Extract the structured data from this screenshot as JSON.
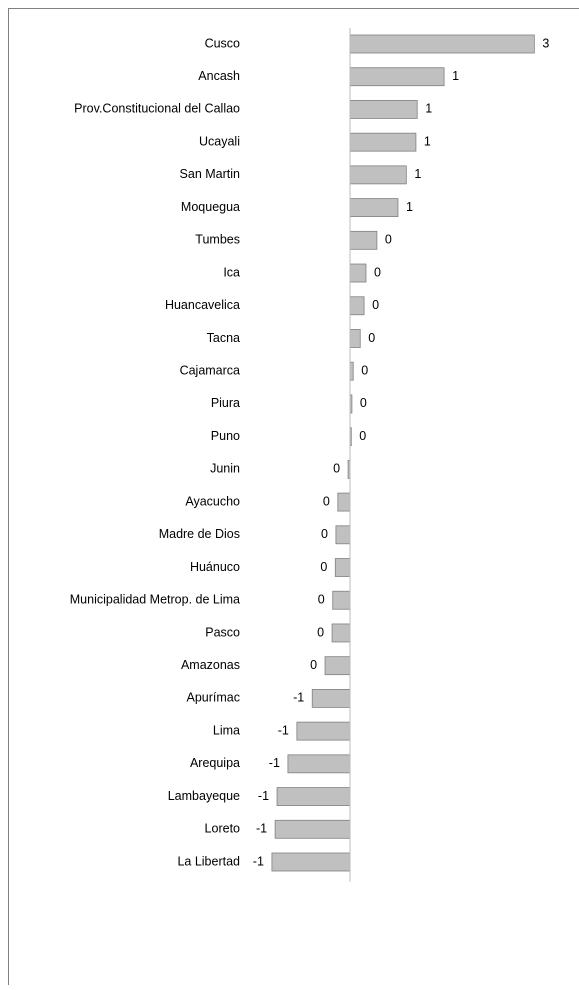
{
  "chart_data": {
    "type": "barh",
    "categories": [
      "Cusco",
      "Ancash",
      "Prov.Constitucional del Callao",
      "Ucayali",
      "San Martin",
      "Moquegua",
      "Tumbes",
      "Ica",
      "Huancavelica",
      "Tacna",
      "Cajamarca",
      "Piura",
      "Puno",
      "Junin",
      "Ayacucho",
      "Madre de Dios",
      "Huánuco",
      "Municipalidad Metrop. de Lima",
      "Pasco",
      "Amazonas",
      "Apurímac",
      "Lima",
      "Arequipa",
      "Lambayeque",
      "Loreto",
      "La Libertad"
    ],
    "values": [
      2.88,
      1.47,
      1.05,
      1.03,
      0.88,
      0.75,
      0.42,
      0.25,
      0.22,
      0.16,
      0.05,
      0.03,
      0.02,
      -0.03,
      -0.19,
      -0.22,
      -0.23,
      -0.27,
      -0.28,
      -0.39,
      -0.59,
      -0.83,
      -0.97,
      -1.14,
      -1.17,
      -1.22
    ],
    "value_labels": [
      "3",
      "1",
      "1",
      "1",
      "1",
      "1",
      "0",
      "0",
      "0",
      "0",
      "0",
      "0",
      "0",
      "0",
      "0",
      "0",
      "0",
      "0",
      "0",
      "0",
      "-1",
      "-1",
      "-1",
      "-1",
      "-1",
      "-1"
    ],
    "color": "#c0c0c0",
    "xlim": [
      -1.5,
      3.2
    ]
  }
}
